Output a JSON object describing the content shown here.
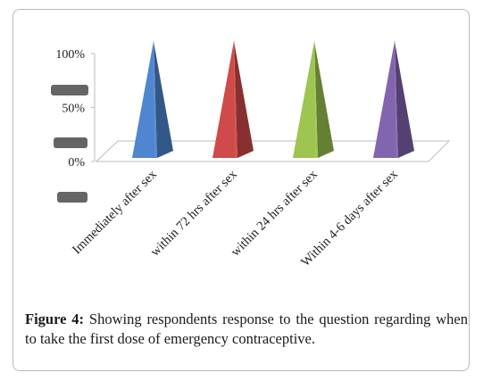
{
  "chart_data": {
    "type": "bar",
    "style": "3d-pyramid",
    "categories": [
      "Immediately after sex",
      "within 72 hrs after sex",
      "within 24 hrs after sex",
      "Within 4-6 days after sex"
    ],
    "values": [
      100,
      100,
      100,
      100
    ],
    "colors": [
      "#4f86cf",
      "#cf4a48",
      "#9dc54f",
      "#8364ae"
    ],
    "ytick_labels": [
      "100%",
      "50%",
      "0%"
    ],
    "ylim": [
      0,
      100
    ],
    "grid": false,
    "legend": "none"
  },
  "caption": {
    "label": "Figure 4:",
    "text": " Showing respondents response to the question regarding when to take the first dose of emergency contraceptive."
  }
}
